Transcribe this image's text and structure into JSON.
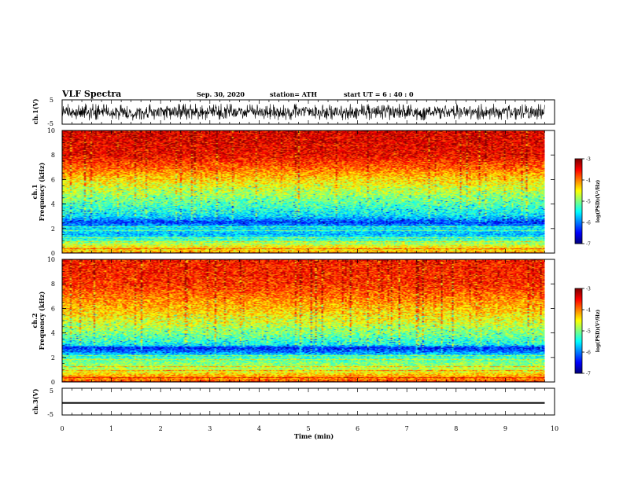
{
  "header": {
    "title": "VLF Spectra",
    "date": "Sep. 30, 2020",
    "station": "station= ATH",
    "start": "start  UT =   6  : 40 : 0"
  },
  "chart_data": [
    {
      "type": "line",
      "name": "ch1-waveform",
      "ylabel": "ch.1(V)",
      "ylim": [
        -5,
        5
      ],
      "yticks": [
        "5",
        "-5"
      ],
      "xlim": [
        0,
        10
      ],
      "trace_range": [
        -3.5,
        3.5
      ],
      "trace_end_min": 9.8
    },
    {
      "type": "heatmap",
      "name": "ch1-spectrogram",
      "ylabel": "ch.1\nFrequency  (kHz)",
      "ylim": [
        0,
        10
      ],
      "yticks": [
        "0",
        "2",
        "4",
        "6",
        "8",
        "10"
      ],
      "xlim": [
        0,
        10
      ],
      "data_end_min": 9.8,
      "colorbar": {
        "label": "log(PSD)(V²/Hz)",
        "min": -7,
        "max": -3,
        "ticks": [
          "-3",
          "-4",
          "-5",
          "-6",
          "-7"
        ]
      },
      "profile_khz": [
        0,
        0.5,
        1,
        1.5,
        2,
        2.5,
        3,
        4,
        5,
        6,
        7,
        8,
        10
      ],
      "profile_log_psd": [
        -4.3,
        -4.5,
        -5.2,
        -5.8,
        -5.6,
        -6.3,
        -5.6,
        -5.2,
        -4.8,
        -4.4,
        -3.9,
        -3.5,
        -3.4
      ]
    },
    {
      "type": "heatmap",
      "name": "ch2-spectrogram",
      "ylabel": "ch.2\nFrequency  (kHz)",
      "ylim": [
        0,
        10
      ],
      "yticks": [
        "0",
        "2",
        "4",
        "6",
        "8",
        "10"
      ],
      "xlim": [
        0,
        10
      ],
      "data_end_min": 9.8,
      "colorbar": {
        "label": "log(PSD)(V²/Hz)",
        "min": -7,
        "max": -3,
        "ticks": [
          "-3",
          "-4",
          "-5",
          "-6",
          "-7"
        ]
      },
      "profile_khz": [
        0,
        0.5,
        1,
        1.5,
        2,
        2.5,
        2.8,
        3,
        4,
        5,
        6,
        7,
        8,
        10
      ],
      "profile_log_psd": [
        -3.9,
        -4.2,
        -4.8,
        -5.0,
        -5.3,
        -6.1,
        -6.4,
        -5.5,
        -5.0,
        -4.6,
        -4.3,
        -4.0,
        -3.7,
        -3.6
      ]
    },
    {
      "type": "line",
      "name": "ch3-waveform",
      "ylabel": "ch.3(V)",
      "ylim": [
        -5,
        5
      ],
      "yticks": [
        "5",
        "-5"
      ],
      "xlim": [
        0,
        10
      ],
      "trace_range": [
        -0.6,
        -0.2
      ],
      "trace_end_min": 9.8,
      "xlabel": "Time  (min)",
      "xticks": [
        "0",
        "1",
        "2",
        "3",
        "4",
        "5",
        "6",
        "7",
        "8",
        "9",
        "10"
      ]
    }
  ],
  "colors": {
    "frame": "#000000",
    "trace": "#000000",
    "background": "#ffffff"
  }
}
